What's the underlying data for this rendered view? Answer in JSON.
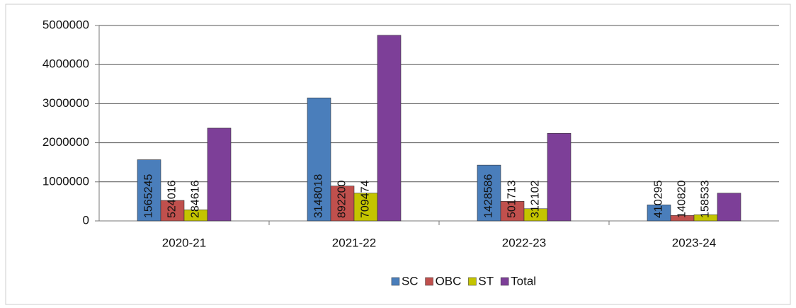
{
  "chart_data": {
    "type": "bar",
    "categories": [
      "2020-21",
      "2021-22",
      "2022-23",
      "2023-24"
    ],
    "series": [
      {
        "name": "SC",
        "color": "#4a7ebb",
        "values": [
          1565245,
          3148018,
          1428586,
          410295
        ],
        "show_labels": true
      },
      {
        "name": "OBC",
        "color": "#c0504d",
        "values": [
          524016,
          892200,
          501713,
          140820
        ],
        "show_labels": true
      },
      {
        "name": "ST",
        "color": "#c4c400",
        "values": [
          284616,
          709474,
          312102,
          158533
        ],
        "show_labels": true
      },
      {
        "name": "Total",
        "color": "#7d3f98",
        "values": [
          2373877,
          4749692,
          2242401,
          709648
        ],
        "show_labels": false
      }
    ],
    "ylim": [
      0,
      5000000
    ],
    "yticks": [
      0,
      1000000,
      2000000,
      3000000,
      4000000,
      5000000
    ],
    "grid": true,
    "legend": "bottom"
  }
}
